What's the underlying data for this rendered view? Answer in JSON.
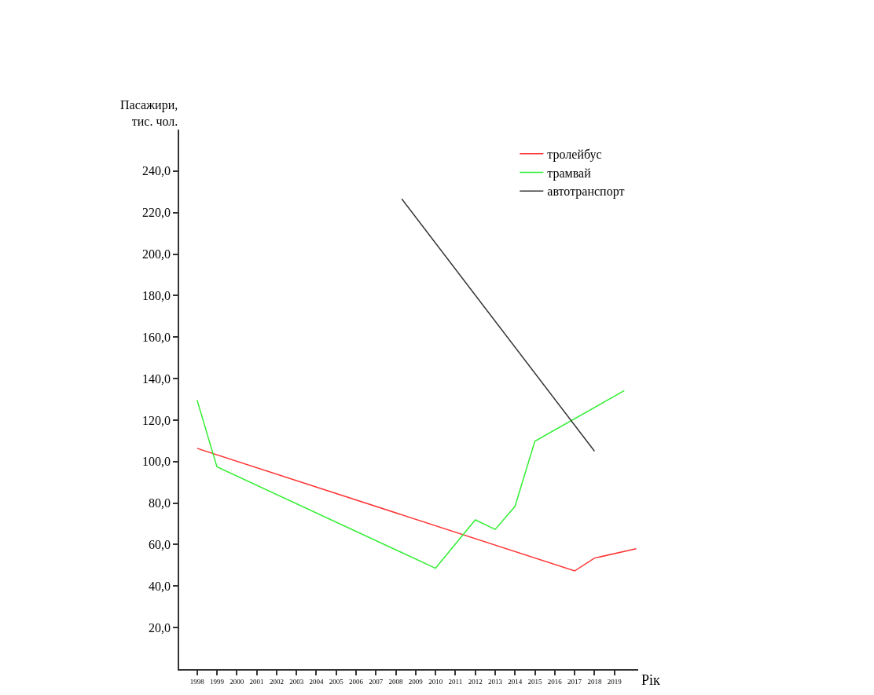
{
  "chart_data": {
    "type": "line",
    "ylabel": "Пасажири,\nтис. чол.",
    "xlabel": "Рік",
    "series": [
      {
        "name": "тролейбус",
        "color": "#ff3333",
        "x": [
          1998,
          2017,
          2018,
          2020.1
        ],
        "values": [
          106.4,
          47.3,
          53.5,
          58.0
        ]
      },
      {
        "name": "трамвай",
        "color": "#33ee33",
        "x": [
          1998,
          1999,
          2010,
          2012,
          2013,
          2014,
          2015,
          2019.5
        ],
        "values": [
          129.6,
          97.5,
          48.6,
          71.9,
          67.3,
          78.4,
          109.8,
          134.2
        ]
      },
      {
        "name": "автотранспорт",
        "color": "#333333",
        "x": [
          2008.3,
          2018
        ],
        "values": [
          226.6,
          105.0
        ]
      }
    ],
    "xlim": [
      1997.1,
      2020.2
    ],
    "xticks": [
      1998,
      1999,
      2000,
      2001,
      2002,
      2003,
      2004,
      2005,
      2006,
      2007,
      2008,
      2009,
      2010,
      2011,
      2012,
      2013,
      2014,
      2015,
      2016,
      2017,
      2018,
      2019
    ],
    "ylim": [
      0,
      260
    ],
    "yticks": [
      {
        "value": 20,
        "label": "20,0"
      },
      {
        "value": 40,
        "label": "40,0"
      },
      {
        "value": 60,
        "label": "60,0"
      },
      {
        "value": 80,
        "label": "80,0"
      },
      {
        "value": 100,
        "label": "100,0"
      },
      {
        "value": 120,
        "label": "120,0"
      },
      {
        "value": 140,
        "label": "140,0"
      },
      {
        "value": 160,
        "label": "160,0"
      },
      {
        "value": 180,
        "label": "180,0"
      },
      {
        "value": 200,
        "label": "200,0"
      },
      {
        "value": 220,
        "label": "220,0"
      },
      {
        "value": 240,
        "label": "240,0"
      }
    ],
    "legend": "top right",
    "marker": "none",
    "line_style": "solid"
  }
}
